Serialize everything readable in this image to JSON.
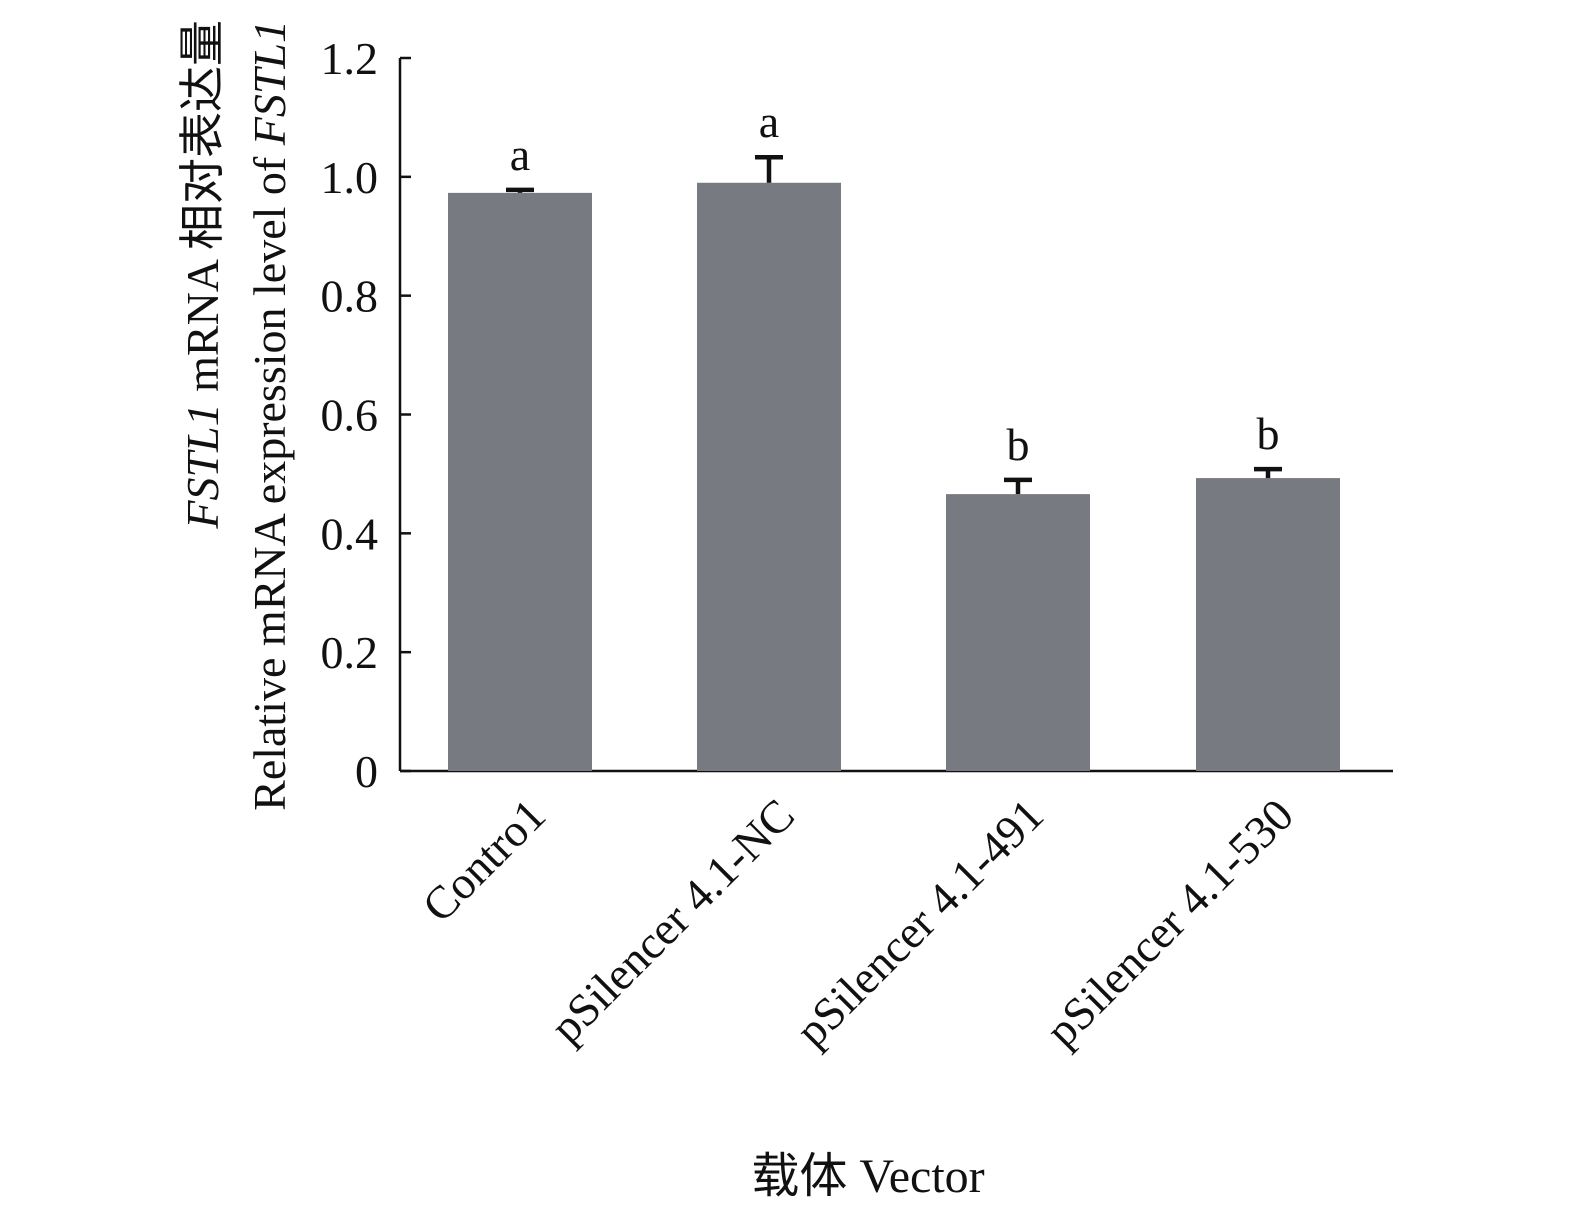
{
  "chart_data": {
    "type": "bar",
    "x_label": "载体 Vector",
    "y_label_lines": [
      [
        {
          "text": "FSTL1",
          "italic": true
        },
        {
          "text": " mRNA 相对表达量"
        }
      ],
      [
        {
          "text": "Relative mRNA expression level of "
        },
        {
          "text": "FSTL1",
          "italic": true
        }
      ]
    ],
    "categories": [
      "Contro1",
      "pSilencer 4.1-NC",
      "pSilencer 4.1-491",
      "pSilencer 4.1-530"
    ],
    "values": [
      0.973,
      0.99,
      0.466,
      0.493
    ],
    "errors": [
      0.005,
      0.043,
      0.024,
      0.015
    ],
    "annotations": [
      "a",
      "a",
      "b",
      "b"
    ],
    "color": "#787a81",
    "ylim": [
      0,
      1.2
    ],
    "yticks": [
      0,
      0.2,
      0.4,
      0.6,
      0.8,
      {
        "value": 1,
        "label": "1.0"
      },
      1.2
    ]
  }
}
